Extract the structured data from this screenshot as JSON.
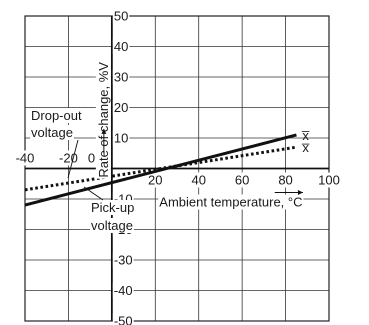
{
  "chart_data": {
    "type": "line",
    "xlabel": "Ambient temperature, °C",
    "ylabel": "Rate of change, %V",
    "xlim": [
      -40,
      100
    ],
    "ylim": [
      -50,
      50
    ],
    "x_ticks": [
      -40,
      -20,
      0,
      20,
      40,
      60,
      80,
      100
    ],
    "y_ticks": [
      -50,
      -40,
      -30,
      -20,
      -10,
      0,
      10,
      20,
      30,
      40,
      50
    ],
    "grid": true,
    "series": [
      {
        "name": "Pick-up voltage",
        "style": "solid",
        "x": [
          -40,
          85
        ],
        "y": [
          -12,
          11
        ],
        "end_label": "x̅"
      },
      {
        "name": "Drop-out voltage",
        "style": "dotted",
        "x": [
          -40,
          85
        ],
        "y": [
          -7,
          7
        ],
        "end_label": "x̅"
      }
    ],
    "annotations": [
      {
        "text_lines": [
          "Drop-out",
          "voltage"
        ],
        "series": "Drop-out voltage"
      },
      {
        "text_lines": [
          "Pick-up",
          "voltage"
        ],
        "series": "Pick-up voltage"
      }
    ]
  }
}
